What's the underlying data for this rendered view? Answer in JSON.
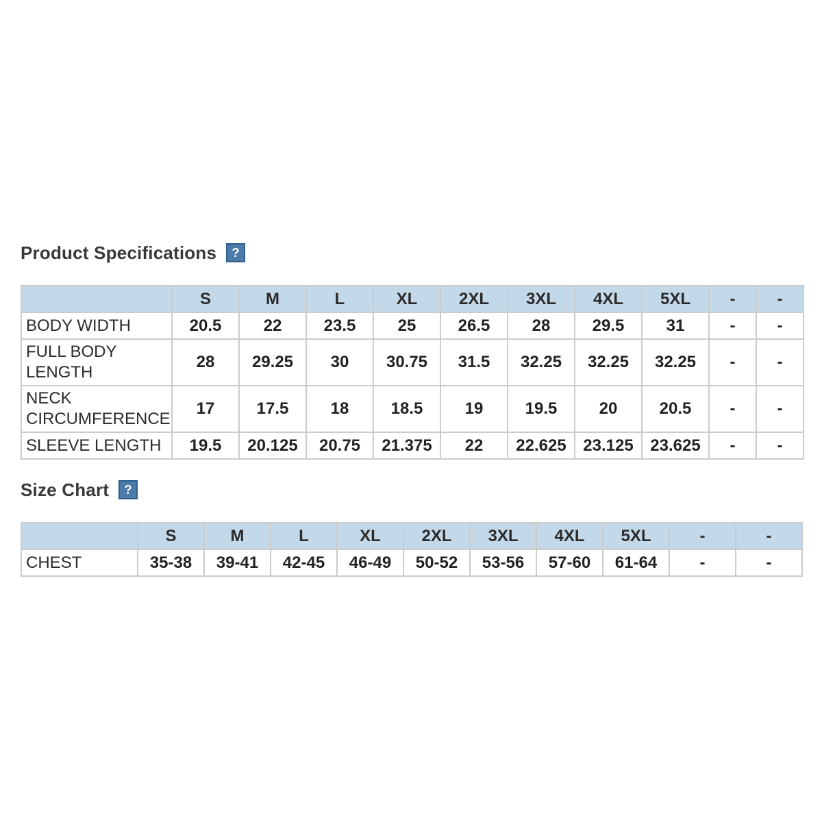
{
  "product_specs": {
    "title": "Product Specifications",
    "help_icon_label": "?",
    "table": {
      "columns": [
        "",
        "S",
        "M",
        "L",
        "XL",
        "2XL",
        "3XL",
        "4XL",
        "5XL",
        "-",
        "-"
      ],
      "rows": [
        {
          "label": "BODY WIDTH",
          "values": [
            "20.5",
            "22",
            "23.5",
            "25",
            "26.5",
            "28",
            "29.5",
            "31",
            "-",
            "-"
          ]
        },
        {
          "label": "FULL BODY LENGTH",
          "values": [
            "28",
            "29.25",
            "30",
            "30.75",
            "31.5",
            "32.25",
            "32.25",
            "32.25",
            "-",
            "-"
          ]
        },
        {
          "label": "NECK CIRCUMFERENCE",
          "values": [
            "17",
            "17.5",
            "18",
            "18.5",
            "19",
            "19.5",
            "20",
            "20.5",
            "-",
            "-"
          ]
        },
        {
          "label": "SLEEVE LENGTH",
          "values": [
            "19.5",
            "20.125",
            "20.75",
            "21.375",
            "22",
            "22.625",
            "23.125",
            "23.625",
            "-",
            "-"
          ]
        }
      ]
    }
  },
  "size_chart": {
    "title": "Size Chart",
    "help_icon_label": "?",
    "table": {
      "columns": [
        "",
        "S",
        "M",
        "L",
        "XL",
        "2XL",
        "3XL",
        "4XL",
        "5XL",
        "-",
        "-"
      ],
      "rows": [
        {
          "label": "CHEST",
          "values": [
            "35-38",
            "39-41",
            "42-45",
            "46-49",
            "50-52",
            "53-56",
            "57-60",
            "61-64",
            "-",
            "-"
          ]
        }
      ]
    }
  },
  "colors": {
    "table_header_bg": "#c3d9ea",
    "table_border": "#cbcbcb",
    "help_icon_bg": "#4d7ba7",
    "help_icon_border": "#2d5f8e",
    "heading_text": "#383838",
    "cell_text": "#222222"
  }
}
